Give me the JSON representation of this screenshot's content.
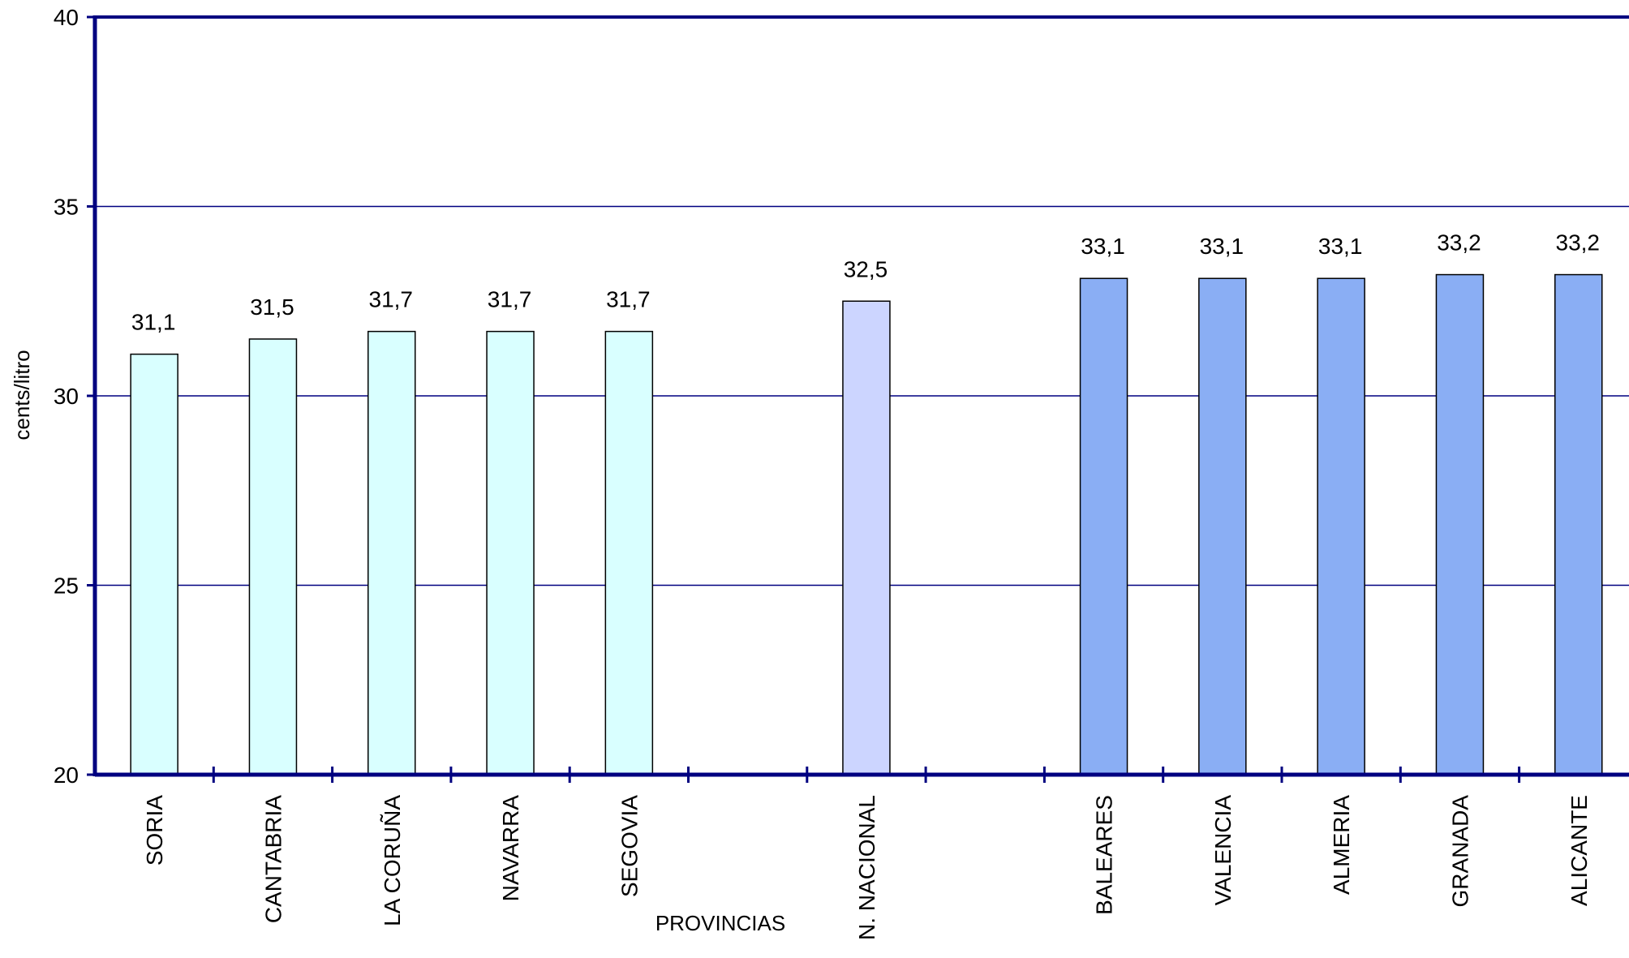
{
  "chart_data": {
    "type": "bar",
    "xlabel": "PROVINCIAS",
    "ylabel": "cents/litro",
    "ylim": [
      20,
      40
    ],
    "yticks": [
      "20",
      "25",
      "30",
      "35",
      "40"
    ],
    "grid": true,
    "categories": [
      "SORIA",
      "CANTABRIA",
      "LA CORUÑA",
      "NAVARRA",
      "SEGOVIA",
      "",
      "N. NACIONAL",
      "",
      "BALEARES",
      "VALENCIA",
      "ALMERIA",
      "GRANADA",
      "ALICANTE"
    ],
    "values": [
      31.1,
      31.5,
      31.7,
      31.7,
      31.7,
      null,
      32.5,
      null,
      33.1,
      33.1,
      33.1,
      33.2,
      33.2
    ],
    "value_labels": [
      "31,1",
      "31,5",
      "31,7",
      "31,7",
      "31,7",
      "",
      "32,5",
      "",
      "33,1",
      "33,1",
      "33,1",
      "33,2",
      "33,2"
    ],
    "colors": [
      "#D9FFFF",
      "#D9FFFF",
      "#D9FFFF",
      "#D9FFFF",
      "#D9FFFF",
      "",
      "#CCD5FF",
      "",
      "#8AAEF4",
      "#8AAEF4",
      "#8AAEF4",
      "#8AAEF4",
      "#8AAEF4"
    ],
    "axis_color": "#000080",
    "grid_color": "#000080"
  }
}
